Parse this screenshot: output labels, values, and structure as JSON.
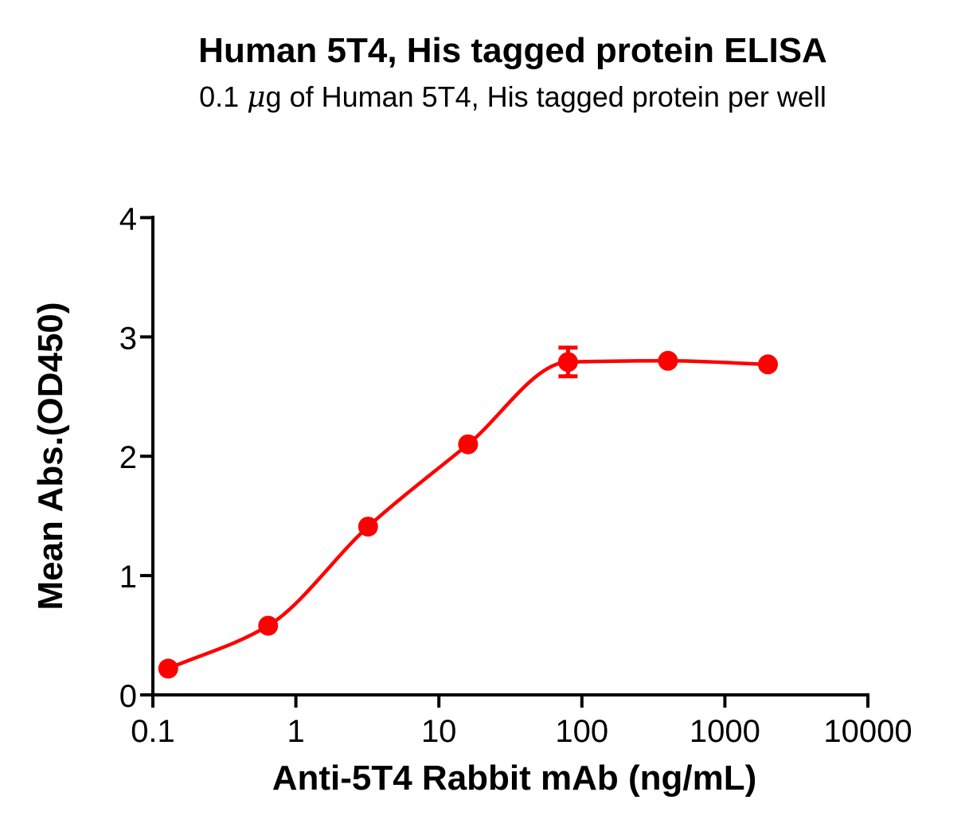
{
  "figure": {
    "title": "Human 5T4, His tagged protein ELISA",
    "subtitle": {
      "prefix": "0.1 ",
      "mu": "μ",
      "suffix": "g of Human 5T4, His tagged protein per well"
    }
  },
  "chart_data": {
    "type": "scatter",
    "title": "Human 5T4, His tagged protein ELISA",
    "subtitle": "0.1 μg of Human 5T4, His tagged protein per well",
    "xlabel": "Anti-5T4 Rabbit mAb (ng/mL)",
    "ylabel": "Mean Abs.(OD450)",
    "x_scale": "log10",
    "xlim": [
      0.1,
      10000
    ],
    "ylim": [
      0,
      4
    ],
    "grid": false,
    "legend": "none",
    "axis_color": "#000000",
    "x_ticks": [
      {
        "value": 0.1,
        "label": "0.1"
      },
      {
        "value": 1,
        "label": "1"
      },
      {
        "value": 10,
        "label": "10"
      },
      {
        "value": 100,
        "label": "100"
      },
      {
        "value": 1000,
        "label": "1000"
      },
      {
        "value": 10000,
        "label": "10000"
      }
    ],
    "y_ticks": [
      {
        "value": 0,
        "label": "0"
      },
      {
        "value": 1,
        "label": "1"
      },
      {
        "value": 2,
        "label": "2"
      },
      {
        "value": 3,
        "label": "3"
      },
      {
        "value": 4,
        "label": "4"
      }
    ],
    "series": [
      {
        "name": "Anti-5T4 Rabbit mAb",
        "color": "#FF0000",
        "marker": "circle",
        "fit": "4PL sigmoid",
        "points": [
          {
            "x": 0.128,
            "y": 0.22
          },
          {
            "x": 0.64,
            "y": 0.58
          },
          {
            "x": 3.2,
            "y": 1.41
          },
          {
            "x": 16,
            "y": 2.1
          },
          {
            "x": 80,
            "y": 2.79,
            "sd": 0.12
          },
          {
            "x": 400,
            "y": 2.8
          },
          {
            "x": 2000,
            "y": 2.77
          }
        ]
      }
    ]
  }
}
